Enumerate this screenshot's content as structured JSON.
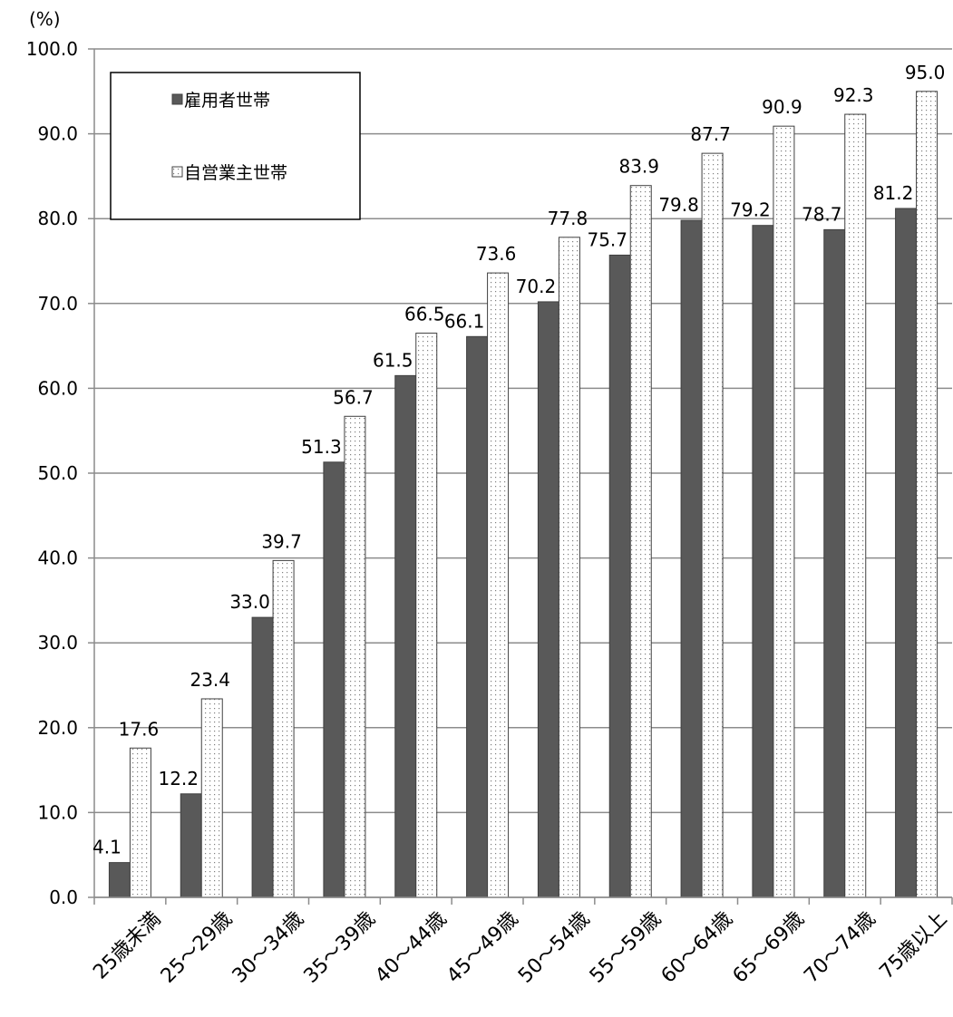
{
  "chart_data": {
    "type": "bar",
    "y_unit": "(%)",
    "categories": [
      "25歳未満",
      "25～29歳",
      "30～34歳",
      "35～39歳",
      "40～44歳",
      "45～49歳",
      "50～54歳",
      "55～59歳",
      "60～64歳",
      "65～69歳",
      "70～74歳",
      "75歳以上"
    ],
    "series": [
      {
        "name": "雇用者世帯",
        "color": "#595959",
        "pattern": "solid",
        "values": [
          4.1,
          12.2,
          33.0,
          51.3,
          61.5,
          66.1,
          70.2,
          75.7,
          79.8,
          79.2,
          78.7,
          81.2
        ]
      },
      {
        "name": "自営業主世帯",
        "color": "#ffffff",
        "pattern": "dotted",
        "values": [
          17.6,
          23.4,
          39.7,
          56.7,
          66.5,
          73.6,
          77.8,
          83.9,
          87.7,
          90.9,
          92.3,
          95.0
        ]
      }
    ],
    "ylim": [
      0,
      100
    ],
    "yticks": [
      "0.0",
      "10.0",
      "20.0",
      "30.0",
      "40.0",
      "50.0",
      "60.0",
      "70.0",
      "80.0",
      "90.0",
      "100.0"
    ],
    "grid": true,
    "legend_position": "top-left",
    "data_labels": true
  }
}
